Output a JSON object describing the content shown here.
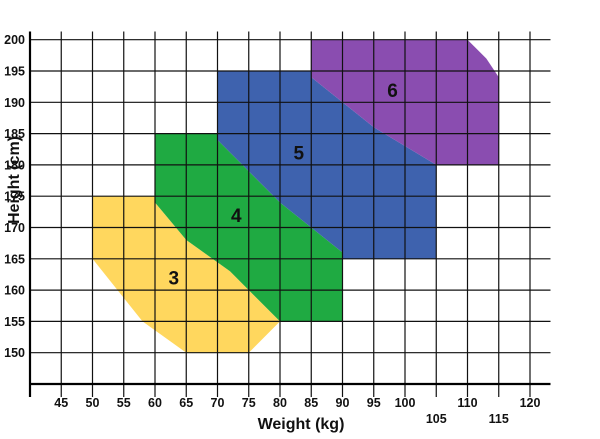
{
  "chart_data": {
    "type": "area",
    "title": "",
    "xlabel": "Weight (kg)",
    "ylabel": "Height (cm)",
    "xlim": [
      40,
      122
    ],
    "ylim": [
      145,
      201
    ],
    "x_ticks": [
      "45",
      "50",
      "55",
      "60",
      "65",
      "70",
      "75",
      "80",
      "85",
      "90",
      "95",
      "100",
      "105",
      "110",
      "115",
      "120"
    ],
    "y_ticks": [
      "150",
      "155",
      "160",
      "165",
      "170",
      "175",
      "180",
      "185",
      "190",
      "195",
      "200"
    ],
    "grid": true,
    "legend": "none",
    "series": [
      {
        "name": "3",
        "color": "#FFD75E",
        "label_pos": [
          63,
          162
        ],
        "polygon": [
          [
            50,
            175
          ],
          [
            60,
            175
          ],
          [
            60,
            174
          ],
          [
            65,
            168
          ],
          [
            72,
            163
          ],
          [
            80,
            155
          ],
          [
            75,
            150
          ],
          [
            65,
            150
          ],
          [
            58,
            155
          ],
          [
            50,
            165
          ]
        ]
      },
      {
        "name": "4",
        "color": "#1FAA42",
        "label_pos": [
          73,
          172
        ],
        "polygon": [
          [
            60,
            185
          ],
          [
            70,
            185
          ],
          [
            70,
            184
          ],
          [
            80,
            174
          ],
          [
            90,
            166
          ],
          [
            90,
            155
          ],
          [
            80,
            155
          ],
          [
            72,
            163
          ],
          [
            65,
            168
          ],
          [
            60,
            174
          ]
        ]
      },
      {
        "name": "5",
        "color": "#3E62AE",
        "label_pos": [
          83,
          182
        ],
        "polygon": [
          [
            70,
            195
          ],
          [
            85,
            195
          ],
          [
            85,
            194
          ],
          [
            95,
            186
          ],
          [
            105,
            180
          ],
          [
            105,
            165
          ],
          [
            90,
            165
          ],
          [
            90,
            166
          ],
          [
            80,
            174
          ],
          [
            70,
            184
          ]
        ]
      },
      {
        "name": "6",
        "color": "#8A4DB0",
        "label_pos": [
          98,
          192
        ],
        "polygon": [
          [
            85,
            200
          ],
          [
            110,
            200
          ],
          [
            113,
            197
          ],
          [
            115,
            194
          ],
          [
            115,
            180
          ],
          [
            105,
            180
          ],
          [
            95,
            186
          ],
          [
            85,
            194
          ]
        ]
      }
    ]
  }
}
